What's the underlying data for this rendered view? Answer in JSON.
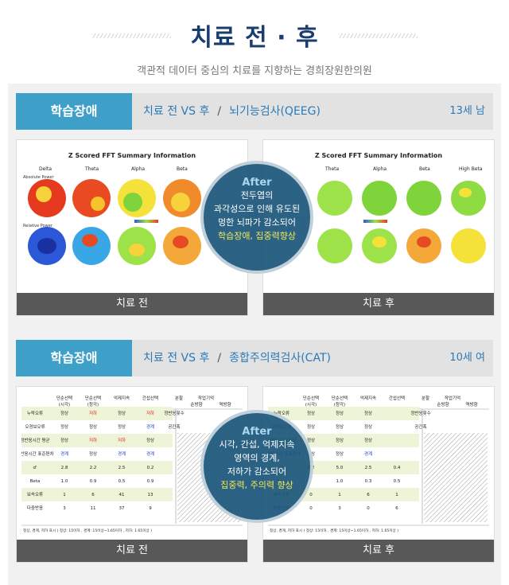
{
  "header": {
    "title": "치료 전 · 후",
    "subtitle": "객관적 데이터 중심의 치료를 지향하는 경희장원한의원"
  },
  "sections": [
    {
      "label": "학습장애",
      "test_prefix": "치료 전 VS 후",
      "test_sep": "/",
      "test_name": "뇌기능검사(QEEG)",
      "age": "13세 남",
      "before_caption": "치료 전",
      "after_caption": "치료 후",
      "after_tag": "After",
      "after_lines": [
        "전두엽의",
        "과각성으로 인해 유도된",
        "멍한 뇌파가 감소되어"
      ],
      "after_highlight": "학습장애, 집중력향상",
      "fft": {
        "title": "Z Scored FFT Summary Information",
        "bands": [
          "Delta",
          "Theta",
          "Alpha",
          "Beta",
          "High Beta"
        ],
        "row1": "Absolute Power",
        "row2": "Relative Power"
      }
    },
    {
      "label": "학습장애",
      "test_prefix": "치료 전 VS 후",
      "test_sep": "/",
      "test_name": "종합주의력검사(CAT)",
      "age": "10세 여",
      "before_caption": "치료 전",
      "after_caption": "치료 후",
      "after_tag": "After",
      "after_lines": [
        "시각, 간섭, 억제지속",
        "영역의 경계,",
        "저하가 감소되어"
      ],
      "after_highlight": "집중력, 주의력 향상",
      "cat": {
        "headers": [
          "단순선택 (시각)",
          "단순선택 (청각)",
          "억제지속",
          "간섭선택",
          "분할"
        ],
        "rows": [
          "누락오류",
          "오경보오류",
          "정반응시간 평균",
          "정반응시간 표준편차",
          "d'",
          "Beta",
          "보속오류",
          "다중반응"
        ],
        "before": [
          [
            "정상",
            "저하",
            "정상",
            "저하"
          ],
          [
            "정상",
            "정상",
            "정상",
            "경계"
          ],
          [
            "정상",
            "저하",
            "저하",
            "정상"
          ],
          [
            "경계",
            "정상",
            "경계",
            "경계"
          ],
          [
            "2.8",
            "2.2",
            "2.5",
            "0.2"
          ],
          [
            "1.0",
            "0.9",
            "0.5",
            "0.9"
          ],
          [
            "1",
            "6",
            "41",
            "13"
          ],
          [
            "3",
            "11",
            "37",
            "9"
          ]
        ],
        "after": [
          [
            "정상",
            "정상",
            "정상",
            ""
          ],
          [
            "정상",
            "정상",
            "정상",
            ""
          ],
          [
            "정상",
            "정상",
            "정상",
            ""
          ],
          [
            "정상",
            "정상",
            "경계",
            ""
          ],
          [
            "2.2",
            "5.0",
            "2.5",
            "0.4"
          ],
          [
            "",
            "1.0",
            "0.3",
            "0.5"
          ],
          [
            "0",
            "1",
            "6",
            "1"
          ],
          [
            "0",
            "3",
            "0",
            "6"
          ]
        ],
        "right_header": "작업기억",
        "right_sub": [
          "순방향",
          "역방향"
        ],
        "right_rows": [
          "정반응횟수",
          "공간폭"
        ],
        "footnote": "정상, 경계, 저하 표시 ( 정상: 15이하 , 경계: 15이상~1.65이하 , 저하: 1.65이상 )"
      }
    }
  ],
  "colors": {
    "accent": "#3ea0c9",
    "title": "#1a3d70",
    "dark": "#585858",
    "circle": "#1a567a",
    "highlight": "#f4e85a"
  }
}
